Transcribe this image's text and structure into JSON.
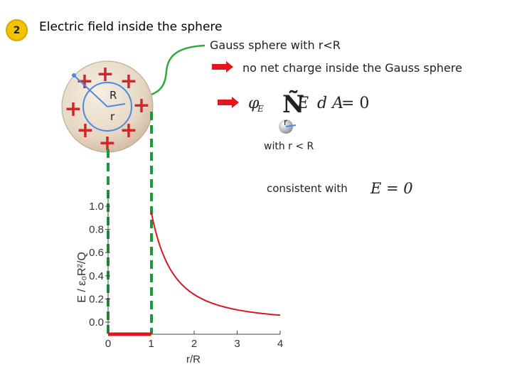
{
  "header": {
    "badge": "2",
    "title": "Electric field inside the sphere"
  },
  "annotations": {
    "gauss_sphere": "Gauss sphere with r<R",
    "no_net_charge": "no net charge inside the Gauss sphere",
    "with_r_lt_R": "with r < R",
    "consistent_with": "consistent with"
  },
  "sphere": {
    "label_R": "R",
    "label_r": "r",
    "charge_symbol": "+"
  },
  "equations": {
    "flux_symbol": "φ",
    "flux_subscript": "E",
    "integral_symbol": "Ñ",
    "vector_E": "E",
    "dA": "d A",
    "equals_zero": "= 0",
    "small_r": "r",
    "E_equals_zero": "E = 0"
  },
  "colors": {
    "curve": "#d71920",
    "arrow": "#e8141b",
    "connector": "#2eab3c",
    "dashed_guide": "#1a9a3c",
    "sphere_fill": "#e9dccb",
    "plus": "#d0262e"
  },
  "chart_data": {
    "type": "line",
    "xlabel": "r/R",
    "ylabel": "E / ε₀R²/Q",
    "xlim": [
      0,
      4
    ],
    "ylim": [
      0,
      1.0
    ],
    "x_ticks": [
      "0",
      "1",
      "2",
      "3",
      "4"
    ],
    "y_ticks": [
      "0.0",
      "0.2",
      "0.4",
      "0.6",
      "0.8",
      "1.0"
    ],
    "series": [
      {
        "x": [
          0,
          1
        ],
        "y": [
          0,
          0
        ]
      },
      {
        "x": [
          1,
          1.25,
          1.5,
          1.75,
          2,
          2.5,
          3,
          3.5,
          4
        ],
        "y": [
          0.955,
          0.61,
          0.424,
          0.312,
          0.239,
          0.153,
          0.106,
          0.078,
          0.06
        ]
      }
    ]
  }
}
